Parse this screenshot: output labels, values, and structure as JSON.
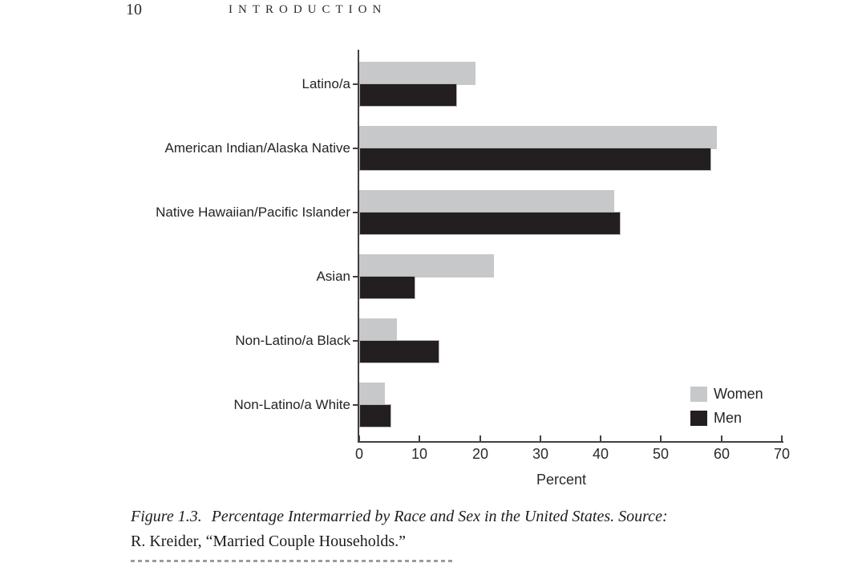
{
  "header": {
    "page_number": "10",
    "title": "INTRODUCTION"
  },
  "chart_data": {
    "type": "bar",
    "orientation": "horizontal",
    "categories": [
      "Latino/a",
      "American Indian/Alaska Native",
      "Native Hawaiian/Pacific Islander",
      "Asian",
      "Non-Latino/a Black",
      "Non-Latino/a White"
    ],
    "series": [
      {
        "name": "Women",
        "color": "#c7c8ca",
        "values": [
          19,
          59,
          42,
          22,
          6,
          4
        ]
      },
      {
        "name": "Men",
        "color": "#231f20",
        "values": [
          16,
          58,
          43,
          9,
          13,
          5
        ]
      }
    ],
    "xlabel": "Percent",
    "xlim": [
      0,
      70
    ],
    "xticks": [
      0,
      10,
      20,
      30,
      40,
      50,
      60,
      70
    ],
    "grid": false,
    "legend_position": "bottom-right",
    "axis_color": "#414042"
  },
  "caption": {
    "figure_label": "Figure 1.3.",
    "line1_text": "Percentage Intermarried by Race and Sex in the United States. Source:",
    "line2": "R. Kreider, “Married Couple Households.”"
  }
}
